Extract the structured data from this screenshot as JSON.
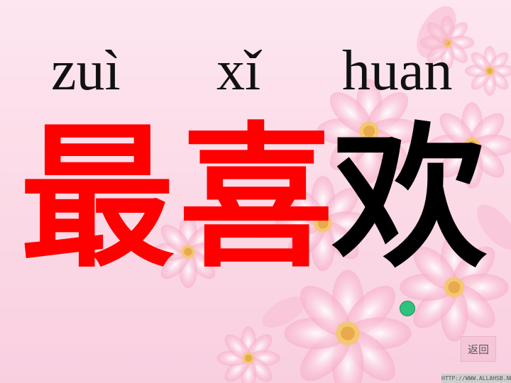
{
  "pinyin": {
    "zui": "zuì",
    "xi": "xǐ",
    "huan": "huan"
  },
  "characters": {
    "zui": "最",
    "xi": "喜",
    "huan": "欢"
  },
  "colors": {
    "highlight": "#ff0000",
    "normal": "#000000",
    "marker": "#2ec27e"
  },
  "back_button_label": "返回",
  "watermark": "HTTP://WWW.ALLAHSB.NET"
}
